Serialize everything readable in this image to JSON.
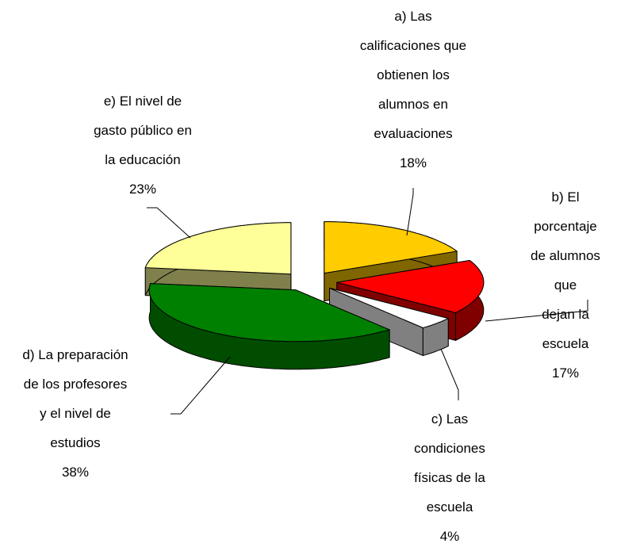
{
  "chart_data": {
    "type": "pie3d",
    "categories": [
      "a) Las\ncalificaciones que\nobtienen los\nalumnos en\nevaluaciones",
      "b) El porcentaje\nde alumnos que\ndejan la escuela",
      "c) Las\ncondiciones\nfísicas de la\nescuela",
      "d) La preparación\nde los profesores\ny el nivel de\nestudios",
      "e) El nivel de\ngasto público en\nla educación"
    ],
    "values": [
      18,
      17,
      4,
      38,
      23
    ],
    "value_labels": [
      "18%",
      "17%",
      "4%",
      "38%",
      "23%"
    ],
    "colors": [
      "#ffcc00",
      "#ff0000",
      "#ffffff",
      "#008000",
      "#ffff99"
    ],
    "side_colors": [
      "#806600",
      "#800000",
      "#808080",
      "#004d00",
      "#80804d"
    ]
  }
}
